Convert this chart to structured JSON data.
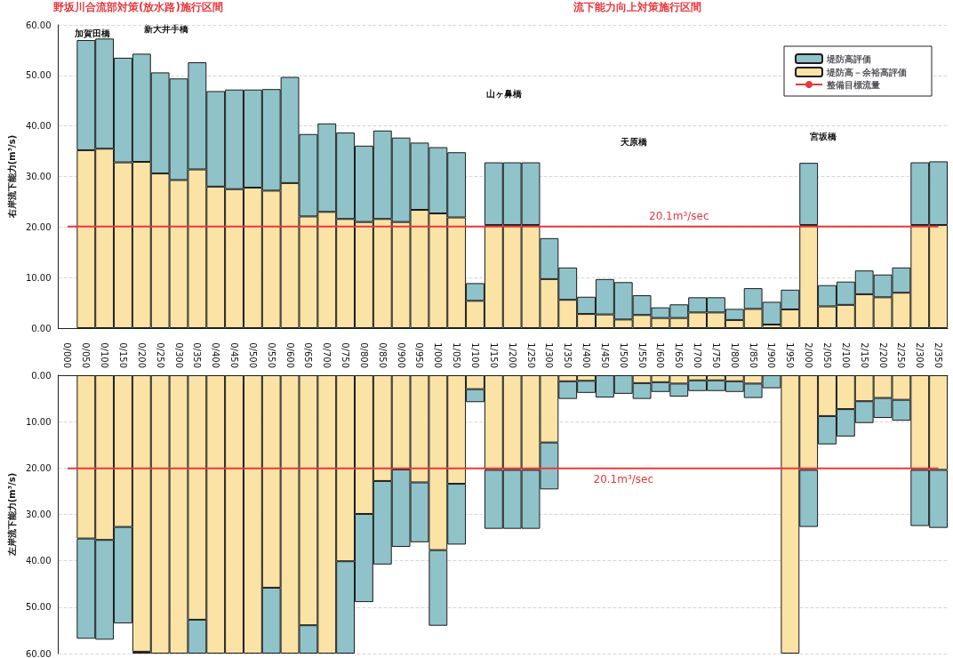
{
  "chart_data": [
    {
      "type": "bar",
      "stacked": true,
      "ylabel": "右岸流下能力(m³/s)",
      "tick_labels": "y",
      "grid": "y",
      "legend": "top right",
      "marker": "none",
      "categories": [
        "0/000",
        "0/050",
        "0/100",
        "0/150",
        "0/200",
        "0/250",
        "0/300",
        "0/350",
        "0/400",
        "0/450",
        "0/500",
        "0/550",
        "0/600",
        "0/650",
        "0/700",
        "0/750",
        "0/800",
        "0/850",
        "0/900",
        "0/950",
        "1/000",
        "1/050",
        "1/100",
        "1/150",
        "1/200",
        "1/250",
        "1/300",
        "1/350",
        "1/400",
        "1/450",
        "1/500",
        "1/550",
        "1/600",
        "1/650",
        "1/700",
        "1/750",
        "1/800",
        "1/850",
        "1/900",
        "1/950",
        "2/000",
        "2/050",
        "2/100",
        "2/150",
        "2/200",
        "2/250",
        "2/300",
        "2/350"
      ],
      "ylim": [
        0,
        60
      ],
      "yticks": [
        {
          "value": 0,
          "label": "0.00"
        },
        {
          "value": 10,
          "label": "10.00"
        },
        {
          "value": 20,
          "label": "20.00"
        },
        {
          "value": 30,
          "label": "30.00"
        },
        {
          "value": 40,
          "label": "40.00"
        },
        {
          "value": 50,
          "label": "50.00"
        },
        {
          "value": 60,
          "label": "60.00"
        }
      ],
      "series": [
        {
          "name": "堤防高－余裕高評価",
          "color": "#fbe3a6",
          "values": [
            null,
            35.2,
            35.5,
            32.8,
            32.9,
            30.6,
            29.3,
            31.4,
            28,
            27.5,
            27.8,
            27.2,
            28.7,
            22.1,
            23,
            21.6,
            21,
            21.6,
            21,
            23.4,
            22.7,
            21.9,
            5.4,
            20.4,
            20.4,
            20.4,
            9.7,
            5.6,
            2.8,
            2.7,
            1.7,
            2.6,
            2,
            2,
            3.1,
            3.1,
            1.6,
            3.8,
            0.7,
            3.7,
            20.4,
            4.3,
            4.6,
            6.7,
            6.1,
            7,
            20.4,
            20.4
          ]
        },
        {
          "name": "堤防高評価",
          "color": "#8fc3c9",
          "values": [
            null,
            21.8,
            21.8,
            20.7,
            21.4,
            20,
            20.1,
            21.2,
            18.9,
            19.7,
            19.4,
            20.1,
            21,
            16.3,
            17.5,
            17.1,
            15.1,
            17.5,
            16.7,
            13.3,
            13.1,
            12.9,
            3.5,
            12.4,
            12.4,
            12.4,
            8.1,
            6.4,
            3.4,
            7,
            7.4,
            3.9,
            2.1,
            2.7,
            3,
            3,
            2.2,
            4.1,
            4.5,
            3.9,
            12.3,
            4.2,
            4.6,
            4.7,
            4.5,
            5,
            12.4,
            12.6
          ]
        },
        {
          "name": "整備目標流量",
          "type": "line",
          "color": "#e8383d",
          "values": [
            20.1,
            20.1,
            20.1,
            20.1,
            20.1,
            20.1,
            20.1,
            20.1,
            20.1,
            20.1,
            20.1,
            20.1,
            20.1,
            20.1,
            20.1,
            20.1,
            20.1,
            20.1,
            20.1,
            20.1,
            20.1,
            20.1,
            20.1,
            20.1,
            20.1,
            20.1,
            20.1,
            20.1,
            20.1,
            20.1,
            20.1,
            20.1,
            20.1,
            20.1,
            20.1,
            20.1,
            20.1,
            20.1,
            20.1,
            20.1,
            20.1,
            20.1,
            20.1,
            20.1,
            20.1,
            20.1,
            20.1,
            20.1
          ]
        }
      ],
      "annotations": [
        "野坂川合流部対策(放水路)施行区間",
        "流下能力向上対策施行区間",
        "加賀田橋",
        "新大井手橋",
        "山ヶ鼻橋",
        "天原橋",
        "宮坂橋",
        {
          "text": "20.1m³/sec",
          "x": "1/650",
          "y": 20.1
        }
      ]
    },
    {
      "type": "bar",
      "stacked": true,
      "ylabel": "左岸流下能力(m³/s)",
      "grid": "y",
      "marker": "none",
      "categories": [
        "0/000",
        "0/050",
        "0/100",
        "0/150",
        "0/200",
        "0/250",
        "0/300",
        "0/350",
        "0/400",
        "0/450",
        "0/500",
        "0/550",
        "0/600",
        "0/650",
        "0/700",
        "0/750",
        "0/800",
        "0/850",
        "0/900",
        "0/950",
        "1/000",
        "1/050",
        "1/100",
        "1/150",
        "1/200",
        "1/250",
        "1/300",
        "1/350",
        "1/400",
        "1/450",
        "1/500",
        "1/550",
        "1/600",
        "1/650",
        "1/700",
        "1/750",
        "1/800",
        "1/850",
        "1/900",
        "1/950",
        "2/000",
        "2/050",
        "2/100",
        "2/150",
        "2/200",
        "2/250",
        "2/300",
        "2/350"
      ],
      "ylim": [
        60,
        0
      ],
      "yticks": [
        {
          "value": 0,
          "label": "0.00"
        },
        {
          "value": 10,
          "label": "10.00"
        },
        {
          "value": 20,
          "label": "20.00"
        },
        {
          "value": 30,
          "label": "30.00"
        },
        {
          "value": 40,
          "label": "40.00"
        },
        {
          "value": 50,
          "label": "50.00"
        },
        {
          "value": 60,
          "label": "60.00"
        }
      ],
      "series": [
        {
          "color": "#fbe3a6",
          "values": [
            null,
            35.2,
            35.5,
            32.7,
            59.6,
            60,
            60,
            52.7,
            60,
            60,
            60,
            45.8,
            60,
            53.9,
            60,
            40.1,
            29.9,
            22.8,
            20.3,
            23.1,
            37.7,
            23.4,
            3,
            20.4,
            20.4,
            20.4,
            14.5,
            1.3,
            1.2,
            null,
            null,
            1.7,
            1.5,
            1.8,
            1.1,
            1.1,
            1.3,
            1.8,
            null,
            60,
            20.4,
            8.8,
            7.3,
            5.6,
            4.9,
            5.3,
            20.4,
            20.4
          ]
        },
        {
          "color": "#8fc3c9",
          "values": [
            null,
            21.6,
            21.5,
            20.8,
            0.4,
            null,
            null,
            7.3,
            null,
            null,
            null,
            14.2,
            null,
            6.1,
            null,
            19.9,
            19,
            18,
            16.7,
            12.9,
            16.3,
            13.1,
            2.8,
            12.7,
            12.7,
            12.7,
            10.1,
            3.8,
            2.6,
            4.8,
            4,
            3.4,
            2.1,
            2.8,
            2.3,
            2.3,
            2.3,
            3.1,
            2.8,
            null,
            12.3,
            6.1,
            5.9,
            4.7,
            4.3,
            4.5,
            12.1,
            12.5
          ]
        },
        {
          "type": "line",
          "color": "#e8383d",
          "values": [
            20.1,
            20.1,
            20.1,
            20.1,
            20.1,
            20.1,
            20.1,
            20.1,
            20.1,
            20.1,
            20.1,
            20.1,
            20.1,
            20.1,
            20.1,
            20.1,
            20.1,
            20.1,
            20.1,
            20.1,
            20.1,
            20.1,
            20.1,
            20.1,
            20.1,
            20.1,
            20.1,
            20.1,
            20.1,
            20.1,
            20.1,
            20.1,
            20.1,
            20.1,
            20.1,
            20.1,
            20.1,
            20.1,
            20.1,
            20.1,
            20.1,
            20.1,
            20.1,
            20.1,
            20.1,
            20.1,
            20.1,
            20.1
          ]
        }
      ],
      "annotations": [
        {
          "text": "20.1m³/sec",
          "x": "1/500",
          "y": 20.1
        }
      ]
    }
  ]
}
